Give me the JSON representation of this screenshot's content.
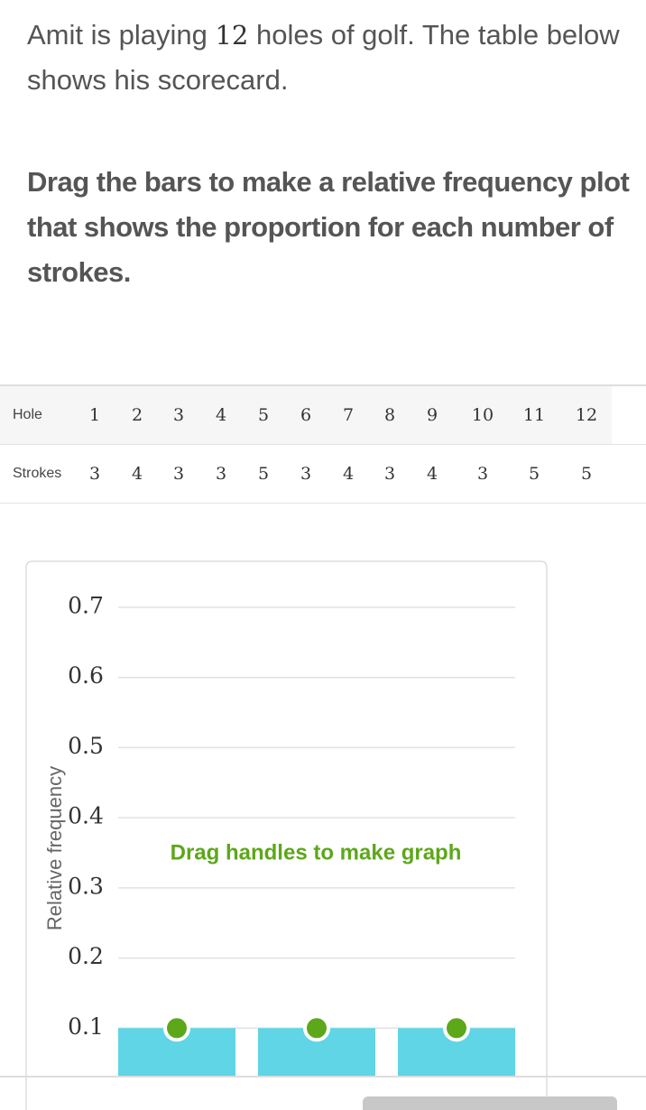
{
  "question": {
    "before": "Amit is playing ",
    "number": "12",
    "after": " holes of golf. The table below shows his scorecard."
  },
  "instruction": "Drag the bars to make a relative frequency plot that shows the proportion for each number of strokes.",
  "table": {
    "rows": [
      [
        "Hole",
        1,
        2,
        3,
        4,
        5,
        6,
        7,
        8,
        9,
        10,
        11,
        12
      ],
      [
        "Strokes",
        3,
        4,
        3,
        3,
        5,
        3,
        4,
        3,
        4,
        3,
        5,
        5
      ]
    ]
  },
  "chart_data": {
    "type": "bar",
    "y_label": "Relative frequency",
    "annotation": "Drag handles to make graph",
    "categories": [
      null,
      null,
      null
    ],
    "values": [
      0.1,
      0.1,
      0.1
    ],
    "color": "#5fd5e6",
    "handle_color": "#5da71a",
    "ylim": [
      0,
      0.7
    ],
    "yticks": [
      0.1,
      0.2,
      0.3,
      0.4,
      0.5,
      0.6,
      0.7
    ],
    "grid": true
  }
}
